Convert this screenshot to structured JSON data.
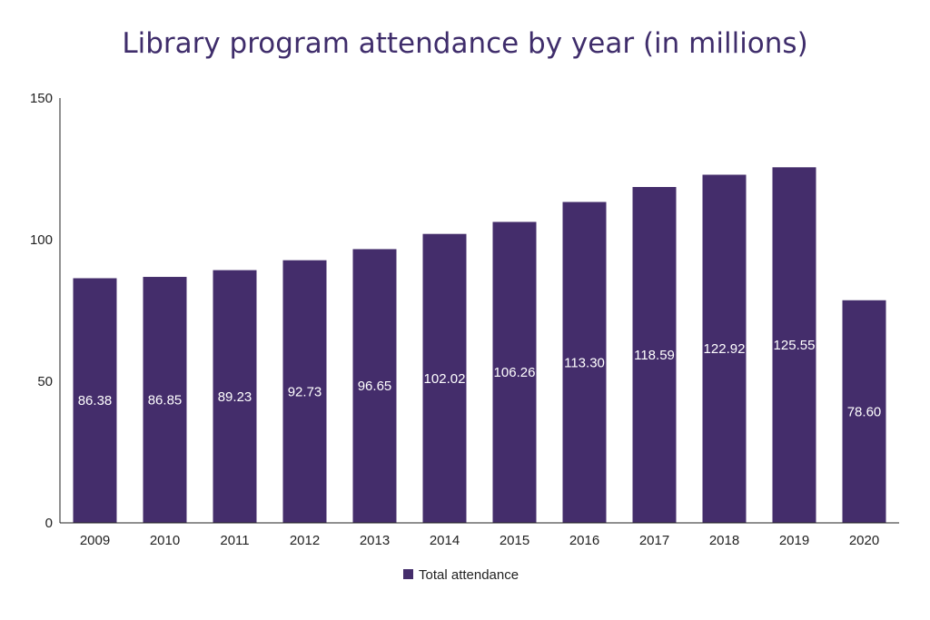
{
  "chart_data": {
    "type": "bar",
    "title": "Library program attendance by year (in millions)",
    "categories": [
      "2009",
      "2010",
      "2011",
      "2012",
      "2013",
      "2014",
      "2015",
      "2016",
      "2017",
      "2018",
      "2019",
      "2020"
    ],
    "series": [
      {
        "name": "Total attendance",
        "color": "#442d6b",
        "values": [
          86.38,
          86.85,
          89.23,
          92.73,
          96.65,
          102.02,
          106.26,
          113.3,
          118.59,
          122.92,
          125.55,
          78.6
        ],
        "labels": [
          "86.38",
          "86.85",
          "89.23",
          "92.73",
          "96.65",
          "102.02",
          "106.26",
          "113.30",
          "118.59",
          "122.92",
          "125.55",
          "78.60"
        ]
      }
    ],
    "yticks": [
      "0",
      "50",
      "100",
      "150"
    ],
    "ylim": [
      0,
      150
    ],
    "grid": false,
    "legend": "bottom-center"
  }
}
